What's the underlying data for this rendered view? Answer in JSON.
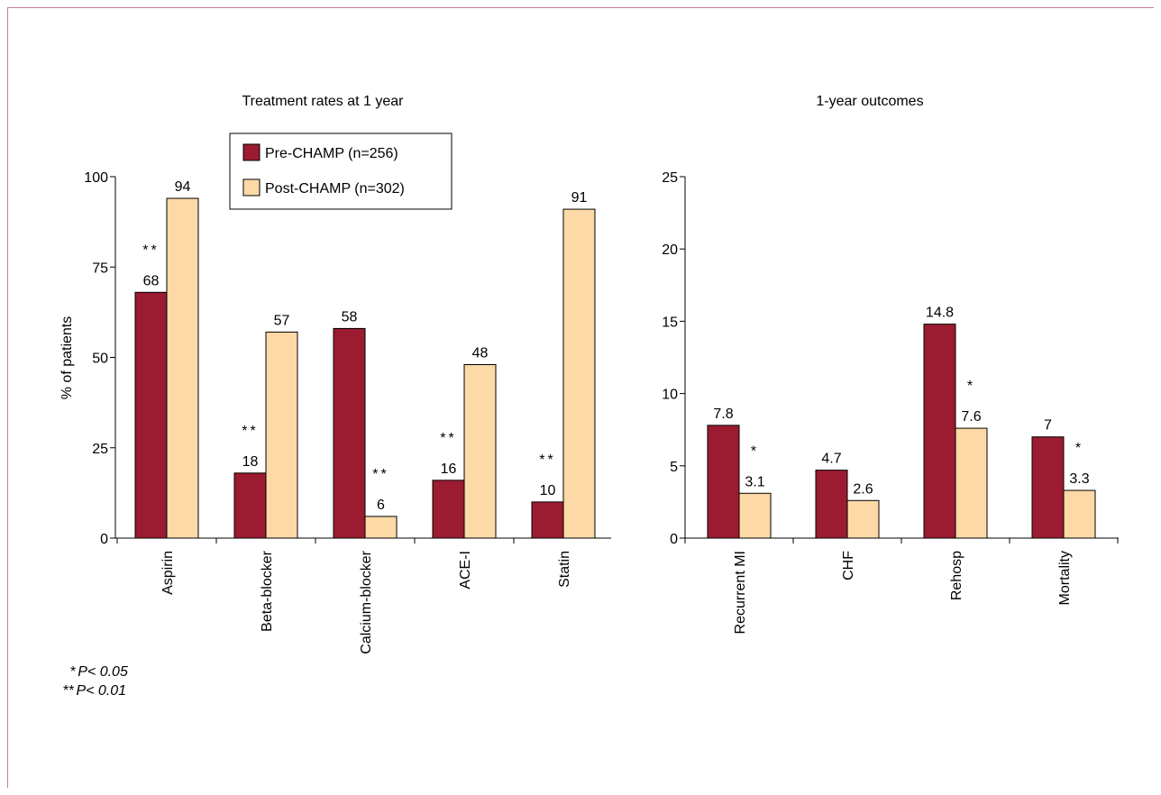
{
  "colors": {
    "pre": "#9b1b30",
    "post": "#fcd9a6",
    "frame": "#c87f96"
  },
  "footnotes": [
    {
      "stars": "*",
      "text": "P< 0.05"
    },
    {
      "stars": "**",
      "text": "P< 0.01"
    }
  ],
  "chart_data": [
    {
      "type": "bar",
      "title": "Treatment rates at  1 year",
      "ylabel": "% of patients",
      "xlabel": "",
      "ylim": [
        0,
        100
      ],
      "yticks": [
        0,
        25,
        50,
        75,
        100
      ],
      "categories": [
        "Aspirin",
        "Beta-blocker",
        "Calcium-blocker",
        "ACE-I",
        "Statin"
      ],
      "legend": {
        "position": "top-center"
      },
      "series": [
        {
          "name": "Pre-CHAMP (n=256)",
          "values": [
            68,
            18,
            58,
            16,
            10
          ],
          "labels": [
            "68",
            "18",
            "58",
            "16",
            "10"
          ]
        },
        {
          "name": "Post-CHAMP (n=302)",
          "values": [
            94,
            57,
            6,
            48,
            91
          ],
          "labels": [
            "94",
            "57",
            "6",
            "48",
            "91"
          ]
        }
      ],
      "significance": [
        {
          "category": 0,
          "series": 0,
          "mark": "**"
        },
        {
          "category": 1,
          "series": 0,
          "mark": "**"
        },
        {
          "category": 2,
          "series": 1,
          "mark": "**"
        },
        {
          "category": 3,
          "series": 0,
          "mark": "**"
        },
        {
          "category": 4,
          "series": 0,
          "mark": "**"
        }
      ]
    },
    {
      "type": "bar",
      "title": "1-year outcomes",
      "ylabel": "",
      "xlabel": "",
      "ylim": [
        0,
        25
      ],
      "yticks": [
        0,
        5,
        10,
        15,
        20,
        25
      ],
      "categories": [
        "Recurrent MI",
        "CHF",
        "Rehosp",
        "Mortality"
      ],
      "series": [
        {
          "name": "Pre-CHAMP (n=256)",
          "values": [
            7.8,
            4.7,
            14.8,
            7
          ],
          "labels": [
            "7.8",
            "4.7",
            "14.8",
            "7"
          ]
        },
        {
          "name": "Post-CHAMP (n=302)",
          "values": [
            3.1,
            2.6,
            7.6,
            3.3
          ],
          "labels": [
            "3.1",
            "2.6",
            "7.6",
            "3.3"
          ]
        }
      ],
      "significance": [
        {
          "category": 0,
          "series": 1,
          "mark": "*"
        },
        {
          "category": 2,
          "series": 1,
          "mark": "*"
        },
        {
          "category": 3,
          "series": 1,
          "mark": "*"
        }
      ]
    }
  ]
}
